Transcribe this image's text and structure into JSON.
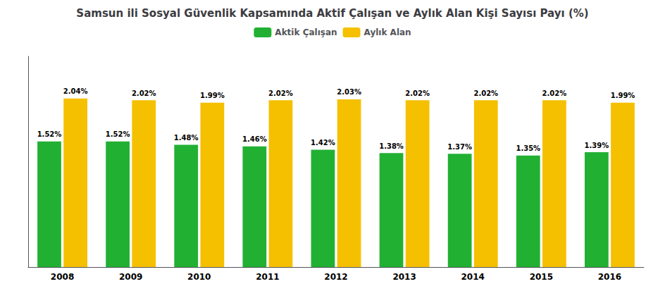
{
  "chart_data": {
    "type": "bar",
    "title": "Samsun ili Sosyal Güvenlik Kapsamında Aktif Çalışan ve Aylık Alan Kişi Sayısı Payı (%)",
    "categories": [
      "2008",
      "2009",
      "2010",
      "2011",
      "2012",
      "2013",
      "2014",
      "2015",
      "2016"
    ],
    "series": [
      {
        "name": "Aktik Çalışan",
        "color": "#22b033",
        "values": [
          1.52,
          1.52,
          1.48,
          1.46,
          1.42,
          1.38,
          1.37,
          1.35,
          1.39
        ],
        "value_labels": [
          "1.52%",
          "1.52%",
          "1.48%",
          "1.46%",
          "1.42%",
          "1.38%",
          "1.37%",
          "1.35%",
          "1.39%"
        ]
      },
      {
        "name": "Aylık Alan",
        "color": "#f5c000",
        "values": [
          2.04,
          2.02,
          1.99,
          2.02,
          2.03,
          2.02,
          2.02,
          2.02,
          1.99
        ],
        "value_labels": [
          "2.04%",
          "2.02%",
          "1.99%",
          "2.02%",
          "2.03%",
          "2.02%",
          "2.02%",
          "2.02%",
          "1.99%"
        ]
      }
    ],
    "ylim": [
      0,
      2.55
    ],
    "data_labels": true,
    "tick_labels": "x",
    "grid": false,
    "legend": "top"
  }
}
